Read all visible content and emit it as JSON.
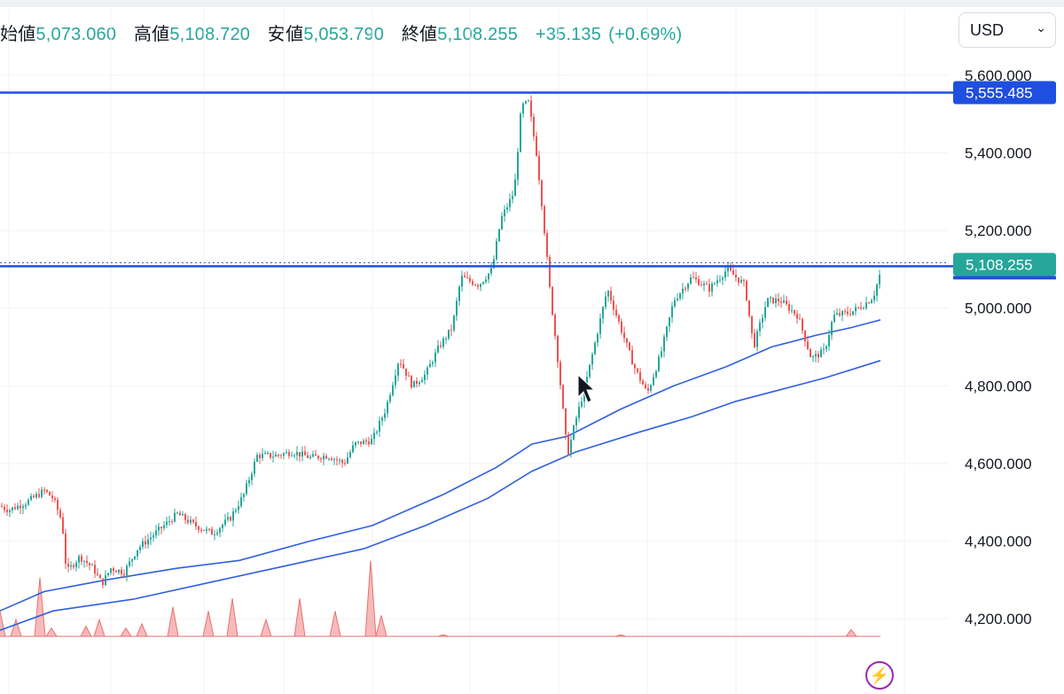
{
  "ohlc": {
    "open_label": "始値",
    "open": "5,073.060",
    "high_label": "高値",
    "high": "5,108.720",
    "low_label": "安値",
    "low": "5,053.790",
    "close_label": "終値",
    "close": "5,108.255",
    "change": "+35.135",
    "change_pct": "(+0.69%)"
  },
  "currency": {
    "selected": "USD"
  },
  "colors": {
    "up": "#26a69a",
    "down": "#ef5350",
    "line": "#1f4fe0",
    "ma": "#2f5fe0",
    "volume": "#f4a3a3",
    "bolt": "#9c27b0"
  },
  "icons": {
    "currency_chevron": "chevron-down-icon",
    "bolt": "lightning-icon",
    "cursor": "cursor-icon"
  },
  "chart_data": {
    "type": "candlestick",
    "y_ticks": [
      "5,600.000",
      "5,400.000",
      "5,200.000",
      "5,000.000",
      "4,800.000",
      "4,600.000",
      "4,400.000",
      "4,200.000"
    ],
    "ylim": [
      4200,
      5600
    ],
    "grid": true,
    "horizontal_lines": [
      {
        "value": 5555.485,
        "label": "5,555.485",
        "color": "#1f4fe0"
      },
      {
        "value": 5108.255,
        "label": "5,108.255",
        "color": "#1f4fe0"
      }
    ],
    "price_label": {
      "value": 5108.255,
      "label": "5,108.255",
      "color": "#26a69a"
    },
    "close_path": [
      [
        0,
        4490
      ],
      [
        10,
        4480
      ],
      [
        30,
        4500
      ],
      [
        50,
        4530
      ],
      [
        60,
        4510
      ],
      [
        70,
        4450
      ],
      [
        75,
        4320
      ],
      [
        90,
        4360
      ],
      [
        105,
        4330
      ],
      [
        115,
        4290
      ],
      [
        125,
        4330
      ],
      [
        140,
        4320
      ],
      [
        155,
        4380
      ],
      [
        175,
        4420
      ],
      [
        200,
        4470
      ],
      [
        220,
        4440
      ],
      [
        240,
        4420
      ],
      [
        260,
        4460
      ],
      [
        275,
        4520
      ],
      [
        290,
        4620
      ],
      [
        310,
        4620
      ],
      [
        330,
        4630
      ],
      [
        350,
        4615
      ],
      [
        370,
        4620
      ],
      [
        388,
        4600
      ],
      [
        400,
        4650
      ],
      [
        420,
        4660
      ],
      [
        435,
        4740
      ],
      [
        450,
        4870
      ],
      [
        465,
        4800
      ],
      [
        480,
        4830
      ],
      [
        495,
        4900
      ],
      [
        510,
        4950
      ],
      [
        520,
        5080
      ],
      [
        540,
        5060
      ],
      [
        555,
        5100
      ],
      [
        565,
        5230
      ],
      [
        580,
        5300
      ],
      [
        588,
        5520
      ],
      [
        596,
        5530
      ],
      [
        605,
        5400
      ],
      [
        612,
        5250
      ],
      [
        620,
        5050
      ],
      [
        630,
        4850
      ],
      [
        640,
        4620
      ],
      [
        648,
        4700
      ],
      [
        660,
        4800
      ],
      [
        670,
        4900
      ],
      [
        685,
        5050
      ],
      [
        700,
        4950
      ],
      [
        715,
        4850
      ],
      [
        730,
        4780
      ],
      [
        745,
        4880
      ],
      [
        760,
        5020
      ],
      [
        780,
        5080
      ],
      [
        800,
        5050
      ],
      [
        820,
        5100
      ],
      [
        840,
        5060
      ],
      [
        850,
        4900
      ],
      [
        865,
        5020
      ],
      [
        880,
        5020
      ],
      [
        900,
        4980
      ],
      [
        915,
        4870
      ],
      [
        930,
        4890
      ],
      [
        940,
        4980
      ],
      [
        960,
        4990
      ],
      [
        975,
        5010
      ],
      [
        985,
        5030
      ],
      [
        995,
        5108
      ]
    ],
    "ma_fast": [
      [
        0,
        4220
      ],
      [
        50,
        4270
      ],
      [
        120,
        4300
      ],
      [
        200,
        4330
      ],
      [
        270,
        4350
      ],
      [
        350,
        4400
      ],
      [
        420,
        4440
      ],
      [
        500,
        4520
      ],
      [
        560,
        4590
      ],
      [
        600,
        4650
      ],
      [
        640,
        4670
      ],
      [
        700,
        4740
      ],
      [
        760,
        4800
      ],
      [
        820,
        4850
      ],
      [
        870,
        4900
      ],
      [
        920,
        4930
      ],
      [
        960,
        4950
      ],
      [
        993,
        4970
      ]
    ],
    "ma_slow": [
      [
        0,
        4170
      ],
      [
        60,
        4220
      ],
      [
        150,
        4250
      ],
      [
        250,
        4300
      ],
      [
        330,
        4340
      ],
      [
        410,
        4380
      ],
      [
        480,
        4440
      ],
      [
        550,
        4510
      ],
      [
        600,
        4580
      ],
      [
        650,
        4630
      ],
      [
        720,
        4680
      ],
      [
        780,
        4720
      ],
      [
        830,
        4760
      ],
      [
        880,
        4790
      ],
      [
        930,
        4820
      ],
      [
        993,
        4865
      ]
    ],
    "volume_spikes": [
      [
        0,
        0.3
      ],
      [
        18,
        0.2
      ],
      [
        45,
        0.7
      ],
      [
        58,
        0.1
      ],
      [
        97,
        0.12
      ],
      [
        112,
        0.2
      ],
      [
        142,
        0.1
      ],
      [
        160,
        0.15
      ],
      [
        195,
        0.35
      ],
      [
        235,
        0.3
      ],
      [
        262,
        0.45
      ],
      [
        300,
        0.2
      ],
      [
        338,
        0.45
      ],
      [
        378,
        0.3
      ],
      [
        418,
        0.9
      ],
      [
        430,
        0.25
      ],
      [
        500,
        0.02
      ],
      [
        700,
        0.02
      ],
      [
        960,
        0.08
      ]
    ]
  }
}
